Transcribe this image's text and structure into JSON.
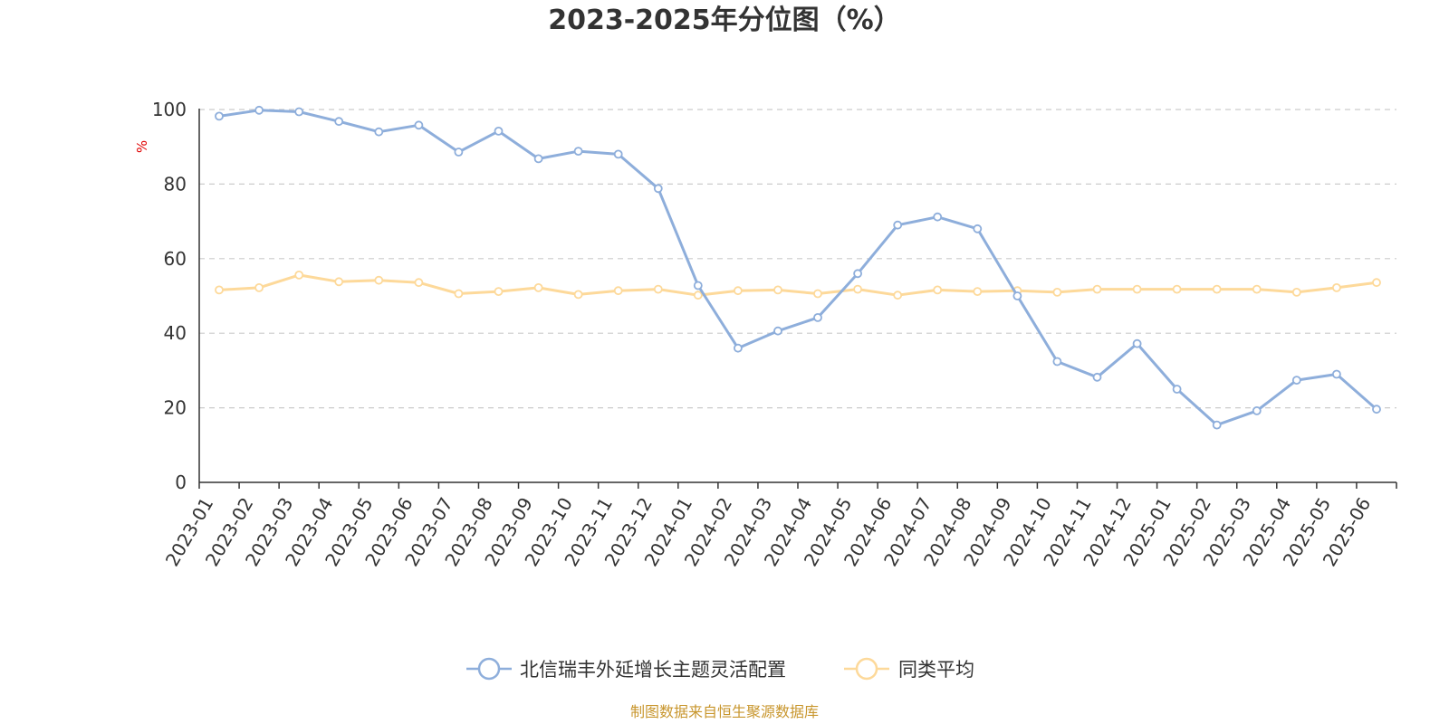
{
  "source_text": "制图数据来自恒生聚源数据库",
  "colors": {
    "series1": "#8eaedb",
    "series2": "#fdd99a",
    "grid": "#cccccc",
    "axis": "#333333",
    "unit": "#e00000",
    "source": "#c8962d"
  },
  "chart_data": {
    "type": "line",
    "title": "2023-2025年分位图（%）",
    "ylabel": "%",
    "xlabel": "",
    "ylim": [
      0,
      100
    ],
    "yticks": [
      0,
      20,
      40,
      60,
      80,
      100
    ],
    "grid": true,
    "legend": "bottom-center",
    "categories": [
      "2023-01",
      "2023-02",
      "2023-03",
      "2023-04",
      "2023-05",
      "2023-06",
      "2023-07",
      "2023-08",
      "2023-09",
      "2023-10",
      "2023-11",
      "2023-12",
      "2024-01",
      "2024-02",
      "2024-03",
      "2024-04",
      "2024-05",
      "2024-06",
      "2024-07",
      "2024-08",
      "2024-09",
      "2024-10",
      "2024-11",
      "2024-12",
      "2025-01",
      "2025-02",
      "2025-03",
      "2025-04",
      "2025-05",
      "2025-06"
    ],
    "series": [
      {
        "name": "北信瑞丰外延增长主题灵活配置",
        "values": [
          98.2,
          99.8,
          99.4,
          96.8,
          94.0,
          95.8,
          88.6,
          94.2,
          86.8,
          88.8,
          88.0,
          78.8,
          52.8,
          36.0,
          40.6,
          44.2,
          56.0,
          69.0,
          71.2,
          68.0,
          50.0,
          32.4,
          28.2,
          37.2,
          25.0,
          15.4,
          19.2,
          27.4,
          29.0,
          19.6
        ]
      },
      {
        "name": "同类平均",
        "values": [
          51.6,
          52.2,
          55.6,
          53.8,
          54.2,
          53.6,
          50.6,
          51.2,
          52.2,
          50.4,
          51.4,
          51.8,
          50.2,
          51.4,
          51.6,
          50.6,
          51.8,
          50.2,
          51.6,
          51.2,
          51.4,
          51.0,
          51.8,
          51.8,
          51.8,
          51.8,
          51.8,
          51.0,
          52.2,
          53.6
        ]
      }
    ]
  }
}
